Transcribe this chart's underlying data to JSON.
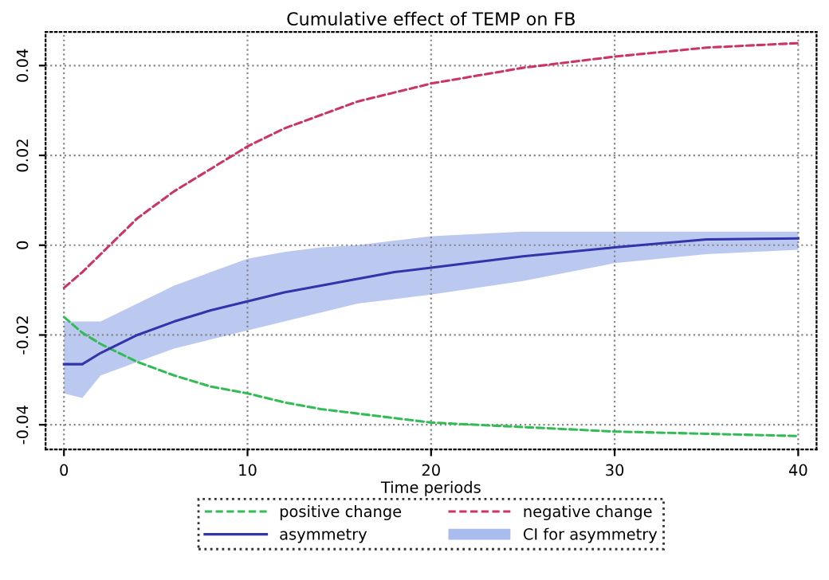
{
  "chart_data": {
    "type": "line",
    "title": "Cumulative effect of TEMP on FB",
    "xlabel": "Time periods",
    "x": [
      0,
      1,
      2,
      4,
      6,
      8,
      10,
      12,
      14,
      16,
      18,
      20,
      25,
      30,
      35,
      40
    ],
    "series": [
      {
        "name": "positive change",
        "color": "#33bb55",
        "line_style": "dashed",
        "values": [
          -0.016,
          -0.0195,
          -0.022,
          -0.026,
          -0.029,
          -0.0315,
          -0.033,
          -0.035,
          -0.0365,
          -0.0375,
          -0.0385,
          -0.0395,
          -0.0405,
          -0.0415,
          -0.042,
          -0.0425
        ]
      },
      {
        "name": "negative change",
        "color": "#cc3366",
        "line_style": "dashed",
        "values": [
          -0.0095,
          -0.006,
          -0.002,
          0.006,
          0.012,
          0.017,
          0.022,
          0.026,
          0.029,
          0.032,
          0.034,
          0.036,
          0.0395,
          0.042,
          0.044,
          0.045
        ]
      },
      {
        "name": "asymmetry",
        "color": "#3333aa",
        "line_style": "solid",
        "values": [
          -0.0265,
          -0.0265,
          -0.024,
          -0.02,
          -0.017,
          -0.0145,
          -0.0125,
          -0.0105,
          -0.009,
          -0.0075,
          -0.006,
          -0.005,
          -0.0025,
          -0.0005,
          0.0013,
          0.0015
        ],
        "lower": [
          -0.033,
          -0.034,
          -0.029,
          -0.026,
          -0.023,
          -0.021,
          -0.019,
          -0.017,
          -0.015,
          -0.013,
          -0.012,
          -0.011,
          -0.008,
          -0.004,
          -0.002,
          -0.001
        ],
        "upper": [
          -0.017,
          -0.017,
          -0.017,
          -0.013,
          -0.009,
          -0.006,
          -0.003,
          -0.0015,
          -0.0005,
          0.0,
          0.001,
          0.002,
          0.003,
          0.003,
          0.003,
          0.003
        ]
      }
    ],
    "annotations": [
      "CI for asymmetry"
    ],
    "xlim": [
      -1,
      41
    ],
    "xticks": [
      0,
      10,
      20,
      30,
      40
    ],
    "ylim": [
      -0.0455,
      0.0475
    ],
    "yticks": [
      -0.04,
      -0.02,
      0,
      0.02,
      0.04
    ],
    "grid": true,
    "legend": "bottom"
  }
}
